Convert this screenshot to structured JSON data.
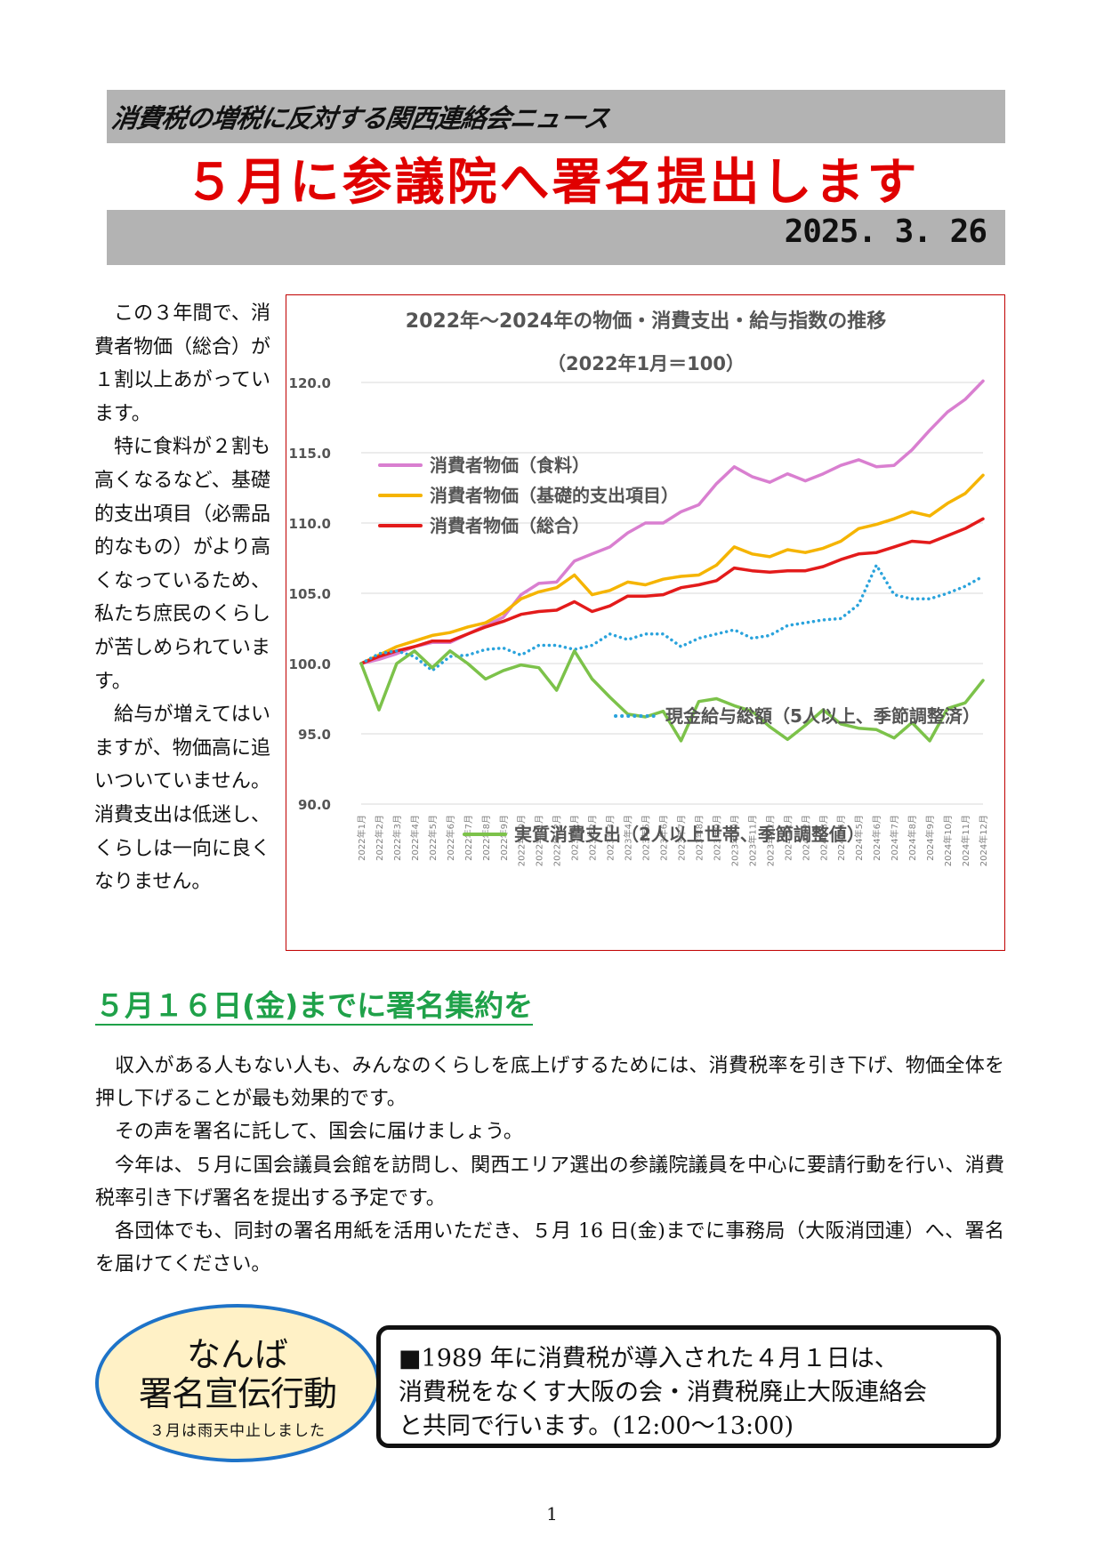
{
  "header": {
    "label": "消費税の増税に反対する関西連絡会ニュース",
    "title": "５月に参議院へ署名提出します",
    "date": "2025. 3. 26"
  },
  "intro": {
    "paragraphs": [
      "この３年間で、消費者物価（総合）が１割以上あがっています。",
      "特に食料が２割も高くなるなど、基礎的支出項目（必需品的なもの）がより高くなっているため、私たち庶民のくらしが苦しめられています。",
      "給与が増えてはいますが、物価高に追いついていません。消費支出は低迷し、くらしは一向に良くなりません。"
    ]
  },
  "chart_data": {
    "type": "line",
    "title": "2022年～2024年の物価・消費支出・給与指数の推移",
    "subtitle": "（2022年1月＝100）",
    "xlabel": "",
    "ylabel": "",
    "ylim": [
      90,
      120
    ],
    "yticks": [
      "120.0",
      "115.0",
      "110.0",
      "105.0",
      "100.0",
      "95.0",
      "90.0"
    ],
    "categories": [
      "2022年1月",
      "2022年2月",
      "2022年3月",
      "2022年4月",
      "2022年5月",
      "2022年6月",
      "2022年7月",
      "2022年8月",
      "2022年9月",
      "2022年10月",
      "2022年11月",
      "2022年12月",
      "2023年1月",
      "2023年2月",
      "2023年3月",
      "2023年4月",
      "2023年5月",
      "2023年6月",
      "2023年7月",
      "2023年8月",
      "2023年9月",
      "2023年10月",
      "2023年11月",
      "2023年12月",
      "2024年1月",
      "2024年2月",
      "2024年3月",
      "2024年4月",
      "2024年5月",
      "2024年6月",
      "2024年7月",
      "2024年8月",
      "2024年9月",
      "2024年10月",
      "2024年11月",
      "2024年12月"
    ],
    "series": [
      {
        "name": "消費者物価（食料）",
        "color": "#d97fd0",
        "dash": "solid",
        "values": [
          100.0,
          100.3,
          100.7,
          101.2,
          101.5,
          101.5,
          102.1,
          102.7,
          103.3,
          104.9,
          105.7,
          105.8,
          107.3,
          107.8,
          108.3,
          109.3,
          110.0,
          110.0,
          110.8,
          111.3,
          112.8,
          114.0,
          113.3,
          112.9,
          113.5,
          113.0,
          113.5,
          114.1,
          114.5,
          114.0,
          114.1,
          115.2,
          116.6,
          117.9,
          118.8,
          120.1
        ]
      },
      {
        "name": "消費者物価（基礎的支出項目）",
        "color": "#f5b400",
        "dash": "solid",
        "values": [
          100.0,
          100.6,
          101.2,
          101.6,
          102.0,
          102.2,
          102.6,
          102.9,
          103.6,
          104.6,
          105.1,
          105.4,
          106.3,
          104.9,
          105.2,
          105.8,
          105.6,
          106.0,
          106.2,
          106.3,
          107.0,
          108.3,
          107.8,
          107.6,
          108.1,
          107.9,
          108.2,
          108.7,
          109.6,
          109.9,
          110.3,
          110.8,
          110.5,
          111.4,
          112.1,
          113.4
        ]
      },
      {
        "name": "消費者物価（総合）",
        "color": "#e31b1b",
        "dash": "solid",
        "values": [
          100.0,
          100.5,
          100.9,
          101.2,
          101.6,
          101.6,
          102.1,
          102.6,
          103.0,
          103.5,
          103.7,
          103.8,
          104.4,
          103.7,
          104.1,
          104.8,
          104.8,
          104.9,
          105.4,
          105.6,
          105.9,
          106.8,
          106.6,
          106.5,
          106.6,
          106.6,
          106.9,
          107.4,
          107.8,
          107.9,
          108.3,
          108.7,
          108.6,
          109.1,
          109.6,
          110.3
        ]
      },
      {
        "name": "現金給与総額（5人以上、季節調整済）",
        "color": "#2aa3dc",
        "dash": "dotted",
        "values": [
          100.0,
          100.7,
          100.9,
          100.5,
          99.5,
          100.5,
          100.6,
          101.0,
          101.1,
          100.6,
          101.3,
          101.3,
          101.0,
          101.3,
          102.1,
          101.7,
          102.1,
          102.1,
          101.2,
          101.8,
          102.1,
          102.4,
          101.8,
          102.0,
          102.7,
          102.9,
          103.1,
          103.2,
          104.2,
          107.0,
          104.9,
          104.6,
          104.6,
          105.0,
          105.5,
          106.2
        ]
      },
      {
        "name": "実質消費支出（2人以上世帯、季節調整値）",
        "color": "#7cc24a",
        "dash": "solid",
        "values": [
          100.0,
          96.7,
          100.0,
          100.9,
          99.7,
          100.9,
          100.0,
          98.9,
          99.5,
          99.9,
          99.7,
          98.1,
          100.9,
          98.9,
          97.6,
          96.4,
          96.2,
          96.6,
          94.5,
          97.3,
          97.5,
          97.0,
          96.6,
          95.5,
          94.6,
          95.6,
          96.7,
          95.7,
          95.4,
          95.3,
          94.7,
          95.8,
          94.5,
          96.8,
          97.2,
          98.8
        ]
      }
    ]
  },
  "section": {
    "heading": "５月１６日(金)までに署名集約を",
    "paragraphs": [
      "収入がある人もない人も、みんなのくらしを底上げするためには、消費税率を引き下げ、物価全体を押し下げることが最も効果的です。",
      "その声を署名に託して、国会に届けましょう。",
      "今年は、５月に国会議員会館を訪問し、関西エリア選出の参議院議員を中心に要請行動を行い、消費税率引き下げ署名を提出する予定です。",
      "各団体でも、同封の署名用紙を活用いただき、５月 16 日(金)までに事務局（大阪消団連）へ、署名を届けてください。"
    ]
  },
  "namba": {
    "title_line1": "なんば",
    "title_line2": "署名宣伝行動",
    "note": "３月は雨天中止しました"
  },
  "info_box": {
    "lines": [
      "■1989 年に消費税が導入された４月１日は、",
      "消費税をなくす大阪の会・消費税廃止大阪連絡会",
      "と共同で行います。(12:00～13:00)"
    ]
  },
  "footer": {
    "page": "1"
  }
}
